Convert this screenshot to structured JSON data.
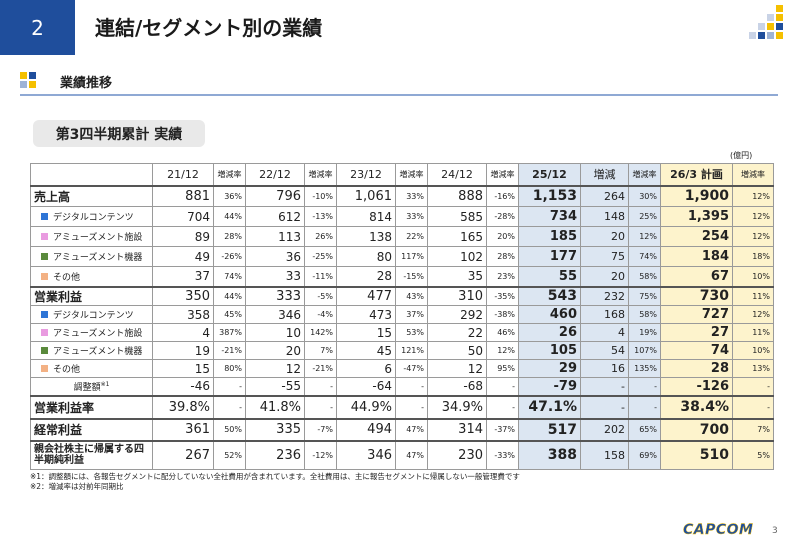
{
  "header": {
    "number": "2",
    "title": "連結/セグメント別の業績"
  },
  "section": "業績推移",
  "subtitle": "第3四半期累計 実績",
  "table": {
    "unit": "(億円)",
    "columns": [
      "21/12",
      "増減率",
      "22/12",
      "増減率",
      "23/12",
      "増減率",
      "24/12",
      "増減率",
      "25/12",
      "増減",
      "増減率",
      "26/3 計画",
      "増減率"
    ],
    "rows": [
      {
        "label": "売上高",
        "cells": [
          "881",
          "36%",
          "796",
          "-10%",
          "1,061",
          "33%",
          "888",
          "-16%",
          "1,153",
          "264",
          "30%",
          "1,900",
          "12%"
        ]
      },
      {
        "label": "デジタルコンテンツ",
        "cells": [
          "704",
          "44%",
          "612",
          "-13%",
          "814",
          "33%",
          "585",
          "-28%",
          "734",
          "148",
          "25%",
          "1,395",
          "12%"
        ]
      },
      {
        "label": "アミューズメント施設",
        "cells": [
          "89",
          "28%",
          "113",
          "26%",
          "138",
          "22%",
          "165",
          "20%",
          "185",
          "20",
          "12%",
          "254",
          "12%"
        ]
      },
      {
        "label": "アミューズメント機器",
        "cells": [
          "49",
          "-26%",
          "36",
          "-25%",
          "80",
          "117%",
          "102",
          "28%",
          "177",
          "75",
          "74%",
          "184",
          "18%"
        ]
      },
      {
        "label": "その他",
        "cells": [
          "37",
          "74%",
          "33",
          "-11%",
          "28",
          "-15%",
          "35",
          "23%",
          "55",
          "20",
          "58%",
          "67",
          "10%"
        ]
      },
      {
        "label": "営業利益",
        "cells": [
          "350",
          "44%",
          "333",
          "-5%",
          "477",
          "43%",
          "310",
          "-35%",
          "543",
          "232",
          "75%",
          "730",
          "11%"
        ]
      },
      {
        "label": "デジタルコンテンツ",
        "cells": [
          "358",
          "45%",
          "346",
          "-4%",
          "473",
          "37%",
          "292",
          "-38%",
          "460",
          "168",
          "58%",
          "727",
          "12%"
        ]
      },
      {
        "label": "アミューズメント施設",
        "cells": [
          "4",
          "387%",
          "10",
          "142%",
          "15",
          "53%",
          "22",
          "46%",
          "26",
          "4",
          "19%",
          "27",
          "11%"
        ]
      },
      {
        "label": "アミューズメント機器",
        "cells": [
          "19",
          "-21%",
          "20",
          "7%",
          "45",
          "121%",
          "50",
          "12%",
          "105",
          "54",
          "107%",
          "74",
          "10%"
        ]
      },
      {
        "label": "その他",
        "cells": [
          "15",
          "80%",
          "12",
          "-21%",
          "6",
          "-47%",
          "12",
          "95%",
          "29",
          "16",
          "135%",
          "28",
          "13%"
        ]
      },
      {
        "label": "調整額",
        "note": "※1",
        "cells": [
          "-46",
          "-",
          "-55",
          "-",
          "-64",
          "-",
          "-68",
          "-",
          "-79",
          "-",
          "-",
          "-126",
          "-"
        ]
      },
      {
        "label": "営業利益率",
        "cells": [
          "39.8%",
          "-",
          "41.8%",
          "-",
          "44.9%",
          "-",
          "34.9%",
          "-",
          "47.1%",
          "-",
          "-",
          "38.4%",
          "-"
        ]
      },
      {
        "label": "経常利益",
        "cells": [
          "361",
          "50%",
          "335",
          "-7%",
          "494",
          "47%",
          "314",
          "-37%",
          "517",
          "202",
          "65%",
          "700",
          "7%"
        ]
      },
      {
        "label": "親会社株主に帰属する四半期純利益",
        "cells": [
          "267",
          "52%",
          "236",
          "-12%",
          "346",
          "47%",
          "230",
          "-33%",
          "388",
          "158",
          "69%",
          "510",
          "5%"
        ]
      }
    ]
  },
  "footnotes": [
    "※1：調整額には、各報告セグメントに配分していない全社費用が含まれています。全社費用は、主に報告セグメントに帰属しない一般管理費です",
    "※2：増減率は対前年同期比"
  ],
  "footer": {
    "logo": "CAPCOM",
    "page": "3"
  }
}
